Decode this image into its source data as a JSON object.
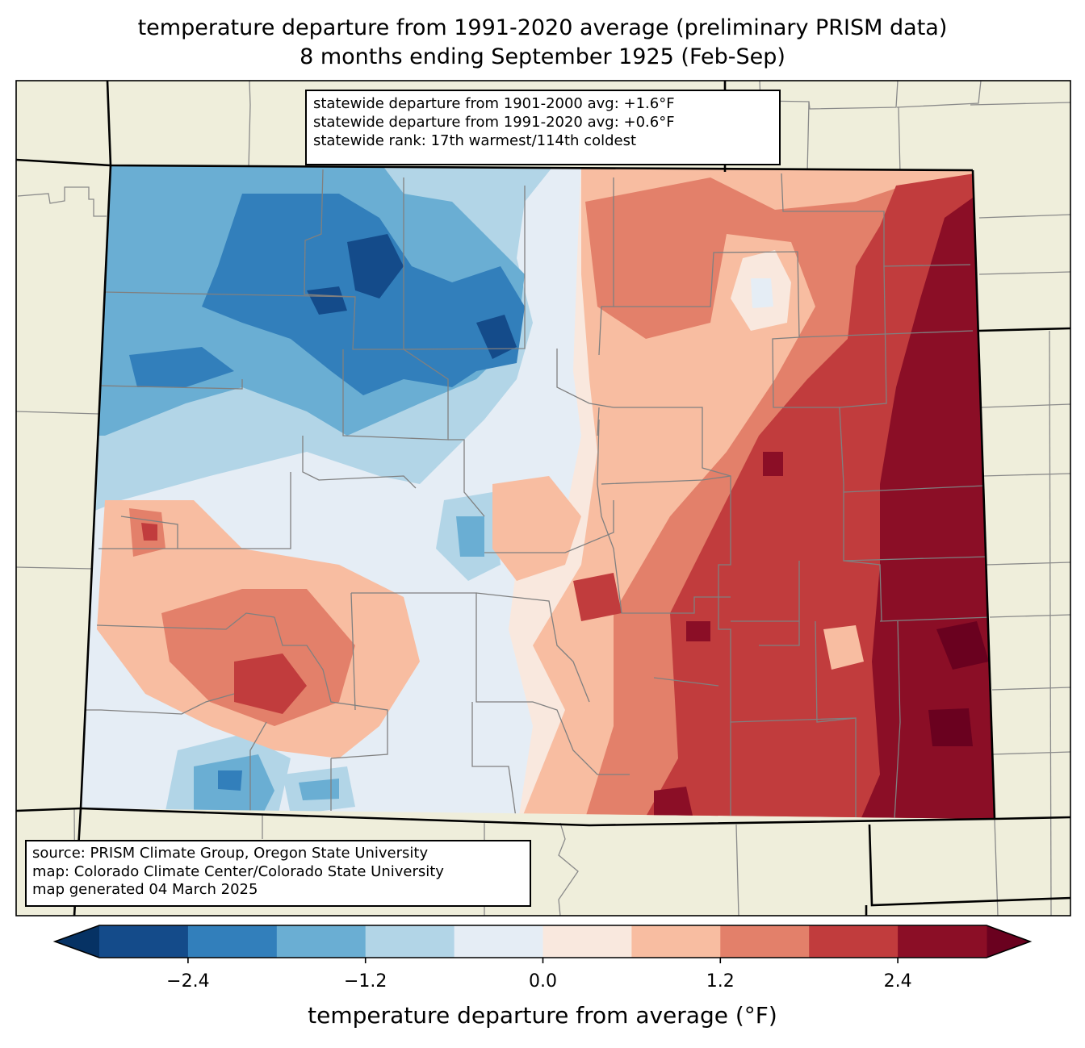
{
  "title": {
    "line1": "temperature departure from 1991-2020 average (preliminary PRISM data)",
    "line2": "8 months ending September 1925 (Feb-Sep)"
  },
  "stats": {
    "line1": "statewide departure from 1901-2000 avg: +1.6°F",
    "line2": "statewide departure from 1991-2020 avg: +0.6°F",
    "line3": "statewide rank: 17th warmest/114th coldest"
  },
  "source": {
    "line1": "source: PRISM Climate Group, Oregon State University",
    "line2": "map: Colorado Climate Center/Colorado State University",
    "line3": "map generated 04 March 2025"
  },
  "colors": {
    "land_background": "#efeedb",
    "county_line": "#808080",
    "state_line": "#000000"
  },
  "chart_data": {
    "type": "heatmap",
    "title": "temperature departure from 1991-2020 average (preliminary PRISM data)",
    "subtitle": "8 months ending September 1925 (Feb-Sep)",
    "region": "Colorado",
    "units": "°F",
    "colorbar": {
      "label": "temperature departure from average (°F)",
      "extend": "both",
      "levels": [
        -3.0,
        -2.4,
        -1.8,
        -1.2,
        -0.6,
        0.0,
        0.6,
        1.2,
        1.8,
        2.4,
        3.0
      ],
      "colors": [
        "#144b8a",
        "#327fbb",
        "#6aaed3",
        "#b2d5e7",
        "#e5edf5",
        "#f9e8de",
        "#f8bda1",
        "#e3806a",
        "#c13c3d",
        "#8b0e26"
      ],
      "under_color": "#063264",
      "over_color": "#6a011f",
      "ticks": [
        -2.4,
        -1.2,
        0.0,
        1.2,
        2.4
      ],
      "tick_labels": [
        "−2.4",
        "−1.2",
        "0.0",
        "1.2",
        "2.4"
      ]
    },
    "pattern_summary": "Cooler than average (blue) across northwest and north-central mountains and the San Luis Valley; warmer than average (red) across the eastern plains, strongest (> +2.4°F) near the Kansas border; warm pocket in southwest."
  }
}
